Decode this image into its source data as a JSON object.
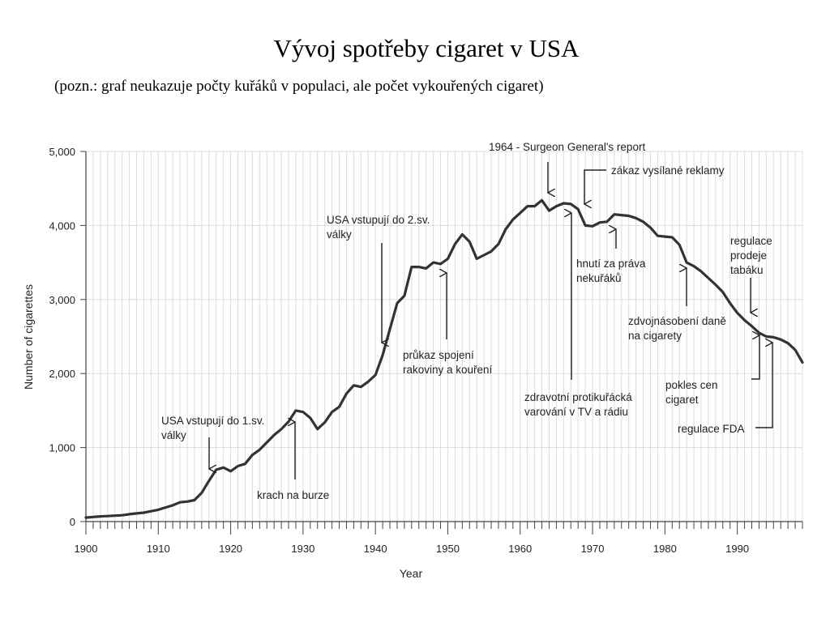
{
  "slide": {
    "title": "Vývoj spotřeby cigaret v USA",
    "subtitle": "(pozn.: graf neukazuje počty kuřáků v populaci, ale počet vykouřených cigaret)"
  },
  "chart_data": {
    "type": "line",
    "xlabel": "Year",
    "ylabel": "Number of cigarettes",
    "xlim": [
      1900,
      1999
    ],
    "ylim": [
      0,
      5000
    ],
    "x_ticks": [
      1900,
      1910,
      1920,
      1930,
      1940,
      1950,
      1960,
      1970,
      1980,
      1990
    ],
    "y_ticks": [
      {
        "value": 0,
        "label": "0"
      },
      {
        "value": 1000,
        "label": "1,000"
      },
      {
        "value": 2000,
        "label": "2,000"
      },
      {
        "value": 3000,
        "label": "3,000"
      },
      {
        "value": 4000,
        "label": "4,000"
      },
      {
        "value": 5000,
        "label": "5,000"
      }
    ],
    "line_color": "#333333",
    "series": [
      {
        "x": [
          1900,
          1901,
          1902,
          1903,
          1904,
          1905,
          1906,
          1907,
          1908,
          1909,
          1910,
          1911,
          1912,
          1913,
          1914,
          1915,
          1916,
          1917,
          1918,
          1919,
          1920,
          1921,
          1922,
          1923,
          1924,
          1925,
          1926,
          1927,
          1928,
          1929,
          1930,
          1931,
          1932,
          1933,
          1934,
          1935,
          1936,
          1937,
          1938,
          1939,
          1940,
          1941,
          1942,
          1943,
          1944,
          1945,
          1946,
          1947,
          1948,
          1949,
          1950,
          1951,
          1952,
          1953,
          1954,
          1955,
          1956,
          1957,
          1958,
          1959,
          1960,
          1961,
          1962,
          1963,
          1964,
          1965,
          1966,
          1967,
          1968,
          1969,
          1970,
          1971,
          1972,
          1973,
          1974,
          1975,
          1976,
          1977,
          1978,
          1979,
          1980,
          1981,
          1982,
          1983,
          1984,
          1985,
          1986,
          1987,
          1988,
          1989,
          1990,
          1991,
          1992,
          1993,
          1994,
          1995,
          1996,
          1997,
          1998,
          1999
        ],
        "values": [
          54,
          62,
          70,
          74,
          80,
          85,
          100,
          110,
          120,
          140,
          160,
          190,
          220,
          260,
          270,
          290,
          390,
          550,
          700,
          730,
          680,
          750,
          780,
          900,
          970,
          1070,
          1170,
          1250,
          1350,
          1500,
          1480,
          1400,
          1250,
          1340,
          1480,
          1550,
          1730,
          1840,
          1820,
          1890,
          1980,
          2250,
          2600,
          2950,
          3050,
          3440,
          3440,
          3420,
          3500,
          3480,
          3550,
          3750,
          3880,
          3780,
          3550,
          3600,
          3650,
          3750,
          3950,
          4080,
          4170,
          4260,
          4260,
          4340,
          4200,
          4260,
          4300,
          4290,
          4220,
          4000,
          3990,
          4040,
          4050,
          4150,
          4140,
          4130,
          4100,
          4050,
          3970,
          3860,
          3850,
          3840,
          3740,
          3500,
          3450,
          3380,
          3290,
          3200,
          3100,
          2950,
          2820,
          2720,
          2640,
          2550,
          2500,
          2490,
          2460,
          2410,
          2320,
          2150
        ]
      }
    ],
    "annotations": [
      {
        "lines": [
          "USA vstupují do 1.sv.",
          "války"
        ],
        "year": 1917,
        "arrow": "down"
      },
      {
        "lines": [
          "krach na burze"
        ],
        "year": 1929,
        "arrow": "up"
      },
      {
        "lines": [
          "USA vstupují do 2.sv.",
          "války"
        ],
        "year": 1941,
        "arrow": "down"
      },
      {
        "lines": [
          "průkaz spojení",
          "rakoviny a kouření"
        ],
        "year": 1950,
        "arrow": "up"
      },
      {
        "lines": [
          "1964 - Surgeon General's report"
        ],
        "year": 1964,
        "arrow": "down"
      },
      {
        "lines": [
          "zákaz vysílané reklamy"
        ],
        "year": 1970,
        "arrow": "down"
      },
      {
        "lines": [
          "zdravotní protikuřácká",
          "varování v TV a rádiu"
        ],
        "year": 1967,
        "arrow": "up"
      },
      {
        "lines": [
          "hnutí za práva",
          "nekuřáků"
        ],
        "year": 1973,
        "arrow": "up"
      },
      {
        "lines": [
          "zdvojnásobení daně",
          "na cigarety"
        ],
        "year": 1983,
        "arrow": "up"
      },
      {
        "lines": [
          "regulace",
          "prodeje",
          "tabáku"
        ],
        "year": 1992,
        "arrow": "down"
      },
      {
        "lines": [
          "pokles cen",
          "cigaret"
        ],
        "year": 1993,
        "arrow": "up"
      },
      {
        "lines": [
          "regulace FDA"
        ],
        "year": 1995,
        "arrow": "up"
      }
    ]
  }
}
